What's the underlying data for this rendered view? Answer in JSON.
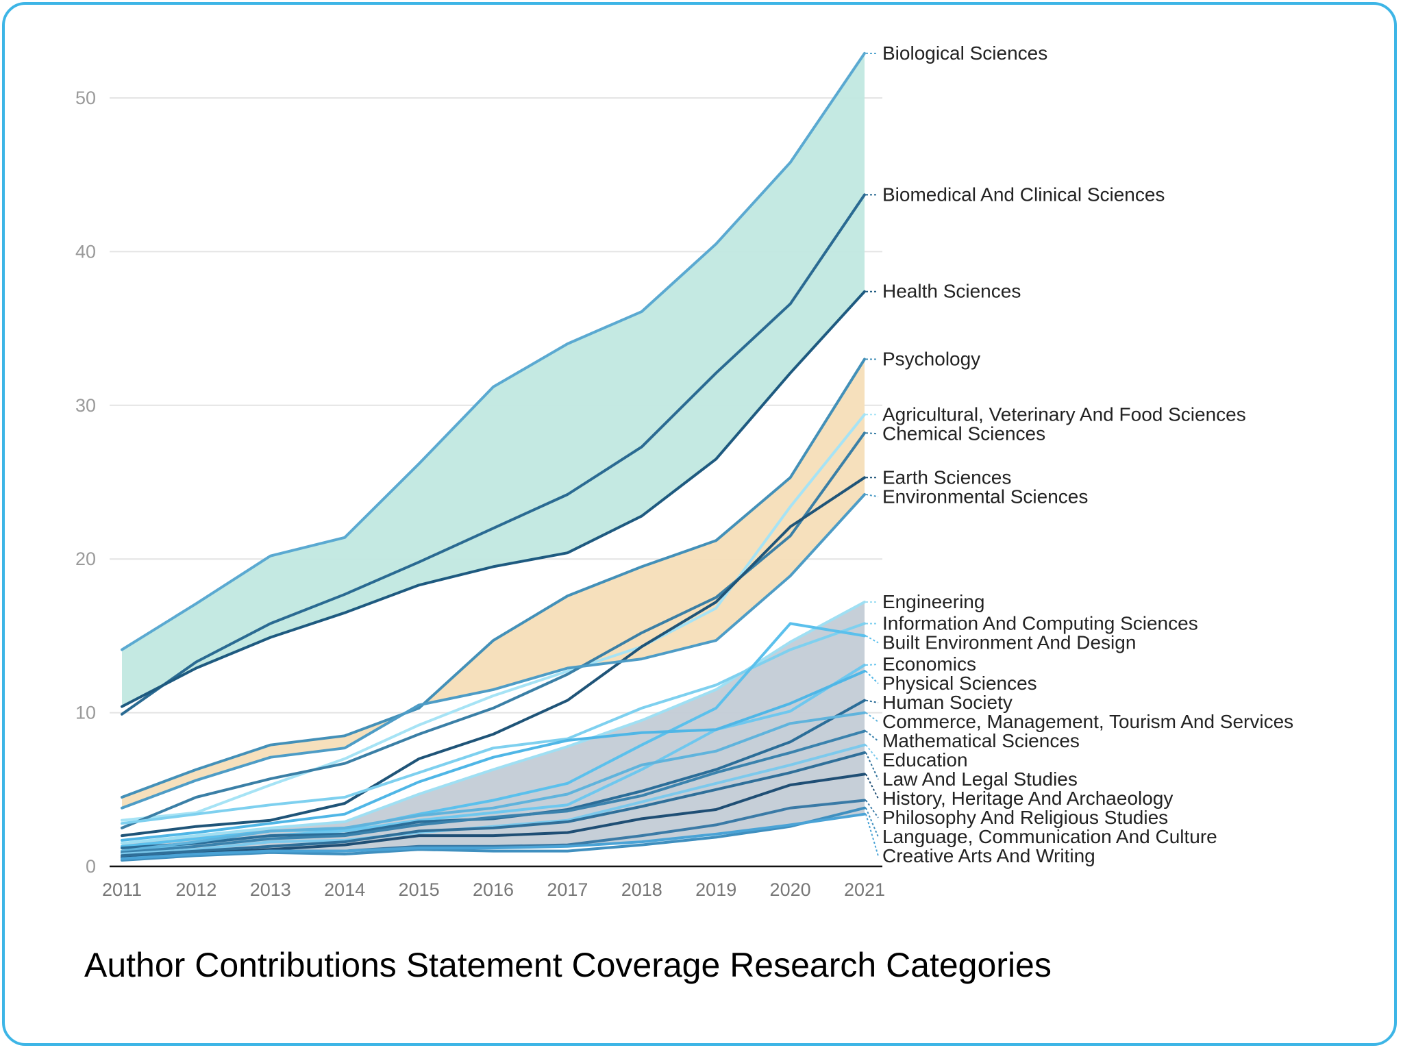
{
  "chart_data": {
    "type": "line",
    "title": "Author Contributions Statement Coverage Research Categories",
    "xlabel": "",
    "ylabel": "",
    "x": [
      2011,
      2012,
      2013,
      2014,
      2015,
      2016,
      2017,
      2018,
      2019,
      2020,
      2021
    ],
    "ylim": [
      0,
      55
    ],
    "yticks": [
      0,
      10,
      20,
      30,
      40,
      50
    ],
    "grid": true,
    "legend": "direct labels at right",
    "bands": [
      {
        "upper": "Biological Sciences",
        "lower": "Health Sciences",
        "color": "#c1e8e0"
      },
      {
        "upper": "Psychology",
        "lower": "Environmental Sciences",
        "color": "#f5deb8"
      },
      {
        "upper": "Engineering",
        "lower": "Creative Arts And Writing",
        "color": "#c3ccd6"
      }
    ],
    "series": [
      {
        "name": "Biological Sciences",
        "color": "#5aa9d1",
        "values": [
          14.1,
          17.1,
          20.2,
          21.4,
          26.2,
          31.2,
          34.0,
          36.1,
          40.5,
          45.8,
          52.9
        ]
      },
      {
        "name": "Biomedical And Clinical Sciences",
        "color": "#2a6a92",
        "values": [
          9.9,
          13.3,
          15.8,
          17.7,
          19.8,
          22.0,
          24.2,
          27.3,
          32.1,
          36.6,
          43.7
        ]
      },
      {
        "name": "Health Sciences",
        "color": "#1e5a80",
        "values": [
          10.4,
          12.9,
          14.9,
          16.5,
          18.3,
          19.5,
          20.4,
          22.8,
          26.5,
          32.1,
          37.4
        ]
      },
      {
        "name": "Psychology",
        "color": "#4390b8",
        "values": [
          4.5,
          6.3,
          7.9,
          8.5,
          10.3,
          14.7,
          17.6,
          19.5,
          21.2,
          25.3,
          33.0
        ]
      },
      {
        "name": "Agricultural, Veterinary And Food Sciences",
        "color": "#a6e3f5",
        "values": [
          3.0,
          3.5,
          5.3,
          7.0,
          9.2,
          11.1,
          12.7,
          14.3,
          16.8,
          23.4,
          29.4
        ]
      },
      {
        "name": "Chemical Sciences",
        "color": "#3a7fa6",
        "values": [
          2.5,
          4.5,
          5.7,
          6.7,
          8.6,
          10.3,
          12.5,
          15.2,
          17.5,
          21.5,
          28.2
        ]
      },
      {
        "name": "Earth Sciences",
        "color": "#1f5478",
        "values": [
          2.0,
          2.6,
          3.0,
          4.1,
          7.0,
          8.6,
          10.8,
          14.3,
          17.2,
          22.1,
          25.3
        ]
      },
      {
        "name": "Environmental Sciences",
        "color": "#4d9cc6",
        "values": [
          3.8,
          5.6,
          7.1,
          7.7,
          10.5,
          11.5,
          12.9,
          13.5,
          14.7,
          18.9,
          24.2
        ]
      },
      {
        "name": "Engineering",
        "color": "#9fdff3",
        "values": [
          1.5,
          2.0,
          2.5,
          2.9,
          4.7,
          6.3,
          7.8,
          9.5,
          11.5,
          14.6,
          17.2
        ]
      },
      {
        "name": "Information And Computing Sciences",
        "color": "#7ed0ef",
        "values": [
          2.8,
          3.4,
          4.0,
          4.5,
          6.1,
          7.7,
          8.3,
          10.3,
          11.8,
          14.1,
          15.8
        ]
      },
      {
        "name": "Built Environment And Design",
        "color": "#5bc0ec",
        "values": [
          1.3,
          1.8,
          2.3,
          2.4,
          3.4,
          4.3,
          5.4,
          7.9,
          10.3,
          15.8,
          15.0
        ]
      },
      {
        "name": "Economics",
        "color": "#6ec7ee",
        "values": [
          1.0,
          1.5,
          2.0,
          2.3,
          3.0,
          3.5,
          4.0,
          6.3,
          8.9,
          10.1,
          13.1
        ]
      },
      {
        "name": "Physical Sciences",
        "color": "#4fb6e6",
        "values": [
          1.7,
          2.2,
          2.8,
          3.4,
          5.5,
          7.1,
          8.2,
          8.7,
          8.9,
          10.6,
          12.7
        ]
      },
      {
        "name": "Human Society",
        "color": "#2b6d98",
        "values": [
          1.2,
          1.5,
          2.0,
          2.1,
          2.9,
          3.1,
          3.7,
          4.9,
          6.3,
          8.1,
          10.8
        ]
      },
      {
        "name": "Commerce, Management, Tourism And Services",
        "color": "#5fb3dc",
        "values": [
          1.0,
          1.6,
          2.3,
          2.5,
          3.3,
          3.8,
          4.7,
          6.6,
          7.5,
          9.3,
          10.0
        ]
      },
      {
        "name": "Mathematical Sciences",
        "color": "#3a82ad",
        "values": [
          0.9,
          1.3,
          1.8,
          2.0,
          2.7,
          3.2,
          3.6,
          4.6,
          6.1,
          7.4,
          8.8
        ]
      },
      {
        "name": "Education",
        "color": "#7cc9ec",
        "values": [
          0.8,
          1.1,
          1.6,
          1.7,
          2.2,
          2.6,
          3.0,
          4.2,
          5.4,
          6.6,
          7.9
        ]
      },
      {
        "name": "History, Heritage And Archaeology",
        "color": "#1f4e74",
        "values": [
          0.6,
          0.9,
          1.1,
          1.4,
          2.0,
          2.0,
          2.2,
          3.1,
          3.7,
          5.3,
          6.0
        ]
      },
      {
        "name": "Law And Legal Studies",
        "color": "#2f6f99",
        "values": [
          0.7,
          1.0,
          1.3,
          1.6,
          2.3,
          2.5,
          2.9,
          3.9,
          5.0,
          6.1,
          7.4
        ]
      },
      {
        "name": "Philosophy And Religious Studies",
        "color": "#3a7aa6",
        "values": [
          0.5,
          0.8,
          1.0,
          1.0,
          1.3,
          1.3,
          1.4,
          2.0,
          2.7,
          3.8,
          4.3
        ]
      },
      {
        "name": "Language, Communication And Culture",
        "color": "#3f8fbf",
        "values": [
          0.4,
          0.7,
          0.9,
          0.8,
          1.1,
          1.0,
          1.0,
          1.4,
          1.9,
          2.6,
          3.8
        ]
      },
      {
        "name": "Creative Arts And Writing",
        "color": "#4aa3d6",
        "values": [
          0.5,
          0.8,
          1.0,
          1.0,
          1.2,
          1.2,
          1.3,
          1.6,
          2.1,
          2.7,
          3.4
        ]
      }
    ]
  }
}
